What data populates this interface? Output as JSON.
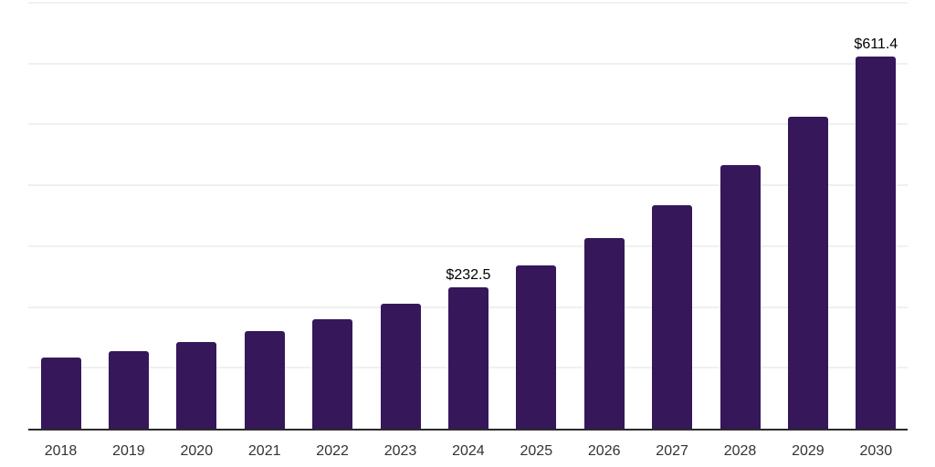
{
  "chart_data": {
    "type": "bar",
    "title": "",
    "xlabel": "",
    "ylabel": "",
    "categories": [
      "2018",
      "2019",
      "2020",
      "2021",
      "2022",
      "2023",
      "2024",
      "2025",
      "2026",
      "2027",
      "2028",
      "2029",
      "2030"
    ],
    "values": [
      117.0,
      128.0,
      143.0,
      160.5,
      179.5,
      205.0,
      232.5,
      269.0,
      314.0,
      366.5,
      432.5,
      512.0,
      611.4
    ],
    "labeled_points": [
      {
        "category": "2024",
        "label": "$232.5"
      },
      {
        "category": "2030",
        "label": "$611.4"
      }
    ],
    "ylim": [
      0,
      700
    ],
    "gridline_step": 100,
    "grid": true,
    "legend": false,
    "bar_color": "#35175a",
    "axis_line_color": "#2b2b2b",
    "gridline_color": "#f0f0f0",
    "value_label_color": "#000000",
    "tick_label_color": "#333333"
  }
}
